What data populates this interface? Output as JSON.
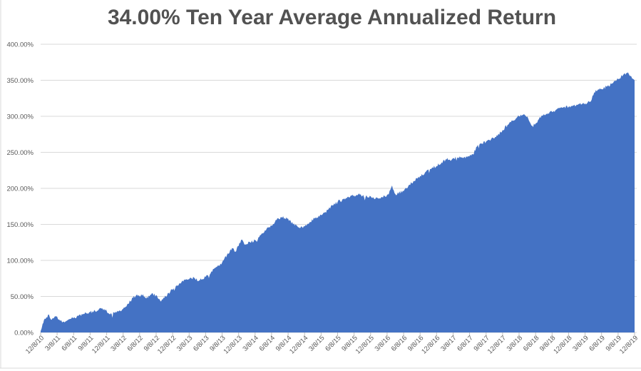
{
  "chart_data": {
    "type": "area",
    "title": "34.00% Ten Year Average Annualized Return",
    "xlabel": "",
    "ylabel": "",
    "ylim": [
      0,
      400
    ],
    "grid": true,
    "legend": false,
    "y_tick_values": [
      0,
      50,
      100,
      150,
      200,
      250,
      300,
      350,
      400
    ],
    "y_tick_labels": [
      "0.00%",
      "50.00%",
      "100.00%",
      "150.00%",
      "200.00%",
      "250.00%",
      "300.00%",
      "350.00%",
      "400.00%"
    ],
    "x_tick_labels": [
      "12/8/10",
      "3/8/11",
      "6/8/11",
      "9/8/11",
      "12/8/11",
      "3/8/12",
      "6/8/12",
      "9/8/12",
      "12/8/12",
      "3/8/13",
      "6/8/13",
      "9/8/13",
      "12/8/13",
      "3/8/14",
      "6/8/14",
      "9/8/14",
      "12/8/14",
      "3/8/15",
      "6/8/15",
      "9/8/15",
      "12/8/15",
      "3/8/16",
      "6/8/16",
      "9/8/16",
      "12/8/16",
      "3/8/17",
      "6/8/17",
      "9/8/17",
      "12/8/17",
      "3/8/18",
      "6/8/18",
      "9/8/18",
      "12/8/18",
      "3/8/19",
      "6/8/19",
      "9/8/19",
      "12/8/19"
    ],
    "series": [
      {
        "unit": "percent_cumulative_return",
        "x_unit": "quarter_index_from_12/8/10",
        "points": [
          [
            0,
            2
          ],
          [
            0.12,
            12
          ],
          [
            0.2,
            17
          ],
          [
            0.35,
            21
          ],
          [
            0.5,
            25
          ],
          [
            0.62,
            18
          ],
          [
            0.8,
            20
          ],
          [
            1,
            22
          ],
          [
            1.2,
            16
          ],
          [
            1.45,
            14
          ],
          [
            1.7,
            18
          ],
          [
            2,
            20
          ],
          [
            2.3,
            23
          ],
          [
            2.6,
            26
          ],
          [
            3,
            28
          ],
          [
            3.3,
            30
          ],
          [
            3.55,
            33
          ],
          [
            3.8,
            31
          ],
          [
            4,
            30
          ],
          [
            4.2,
            25
          ],
          [
            4.5,
            27
          ],
          [
            4.75,
            30
          ],
          [
            5,
            33
          ],
          [
            5.3,
            40
          ],
          [
            5.6,
            48
          ],
          [
            5.8,
            52
          ],
          [
            6,
            50
          ],
          [
            6.2,
            53
          ],
          [
            6.4,
            47
          ],
          [
            6.6,
            50
          ],
          [
            6.8,
            54
          ],
          [
            7,
            52
          ],
          [
            7.25,
            44
          ],
          [
            7.5,
            48
          ],
          [
            7.75,
            55
          ],
          [
            8,
            59
          ],
          [
            8.3,
            65
          ],
          [
            8.6,
            72
          ],
          [
            9,
            74
          ],
          [
            9.3,
            76
          ],
          [
            9.6,
            72
          ],
          [
            9.8,
            74
          ],
          [
            10,
            77
          ],
          [
            10.3,
            82
          ],
          [
            10.6,
            90
          ],
          [
            11,
            97
          ],
          [
            11.3,
            108
          ],
          [
            11.6,
            117
          ],
          [
            11.8,
            112
          ],
          [
            12,
            120
          ],
          [
            12.2,
            129
          ],
          [
            12.35,
            122
          ],
          [
            12.7,
            125
          ],
          [
            13,
            128
          ],
          [
            13.3,
            135
          ],
          [
            13.6,
            142
          ],
          [
            14,
            148
          ],
          [
            14.3,
            156
          ],
          [
            14.6,
            160
          ],
          [
            15,
            158
          ],
          [
            15.3,
            150
          ],
          [
            15.6,
            146
          ],
          [
            16,
            147
          ],
          [
            16.3,
            153
          ],
          [
            16.6,
            158
          ],
          [
            17,
            163
          ],
          [
            17.4,
            170
          ],
          [
            17.7,
            176
          ],
          [
            18,
            181
          ],
          [
            18.3,
            185
          ],
          [
            18.6,
            188
          ],
          [
            19,
            190
          ],
          [
            19.3,
            193
          ],
          [
            19.6,
            188
          ],
          [
            20,
            189
          ],
          [
            20.3,
            186
          ],
          [
            20.7,
            188
          ],
          [
            21,
            191
          ],
          [
            21.3,
            204
          ],
          [
            21.5,
            192
          ],
          [
            22,
            196
          ],
          [
            22.3,
            204
          ],
          [
            22.6,
            210
          ],
          [
            23,
            217
          ],
          [
            23.3,
            222
          ],
          [
            23.6,
            227
          ],
          [
            24,
            231
          ],
          [
            24.3,
            236
          ],
          [
            24.6,
            240
          ],
          [
            25,
            242
          ],
          [
            25.3,
            243
          ],
          [
            25.6,
            242
          ],
          [
            26,
            245
          ],
          [
            26.2,
            247
          ],
          [
            26.45,
            258
          ],
          [
            26.7,
            262
          ],
          [
            27,
            265
          ],
          [
            27.3,
            268
          ],
          [
            27.6,
            271
          ],
          [
            28,
            281
          ],
          [
            28.3,
            288
          ],
          [
            28.6,
            294
          ],
          [
            29,
            300
          ],
          [
            29.3,
            303
          ],
          [
            29.55,
            297
          ],
          [
            29.8,
            287
          ],
          [
            30,
            290
          ],
          [
            30.2,
            296
          ],
          [
            30.5,
            303
          ],
          [
            31,
            306
          ],
          [
            31.3,
            310
          ],
          [
            31.6,
            312
          ],
          [
            32,
            313
          ],
          [
            32.3,
            315
          ],
          [
            32.6,
            317
          ],
          [
            33,
            318
          ],
          [
            33.3,
            320
          ],
          [
            33.55,
            333
          ],
          [
            33.75,
            336
          ],
          [
            34,
            338
          ],
          [
            34.3,
            341
          ],
          [
            34.6,
            345
          ],
          [
            35,
            352
          ],
          [
            35.3,
            357
          ],
          [
            35.55,
            360
          ],
          [
            35.75,
            356
          ],
          [
            35.9,
            352
          ],
          [
            36,
            350
          ]
        ]
      }
    ],
    "colors": {
      "area": "#4472C4",
      "gridline": "#D9D9D9",
      "tick_mark": "#BFBFBF",
      "axis_label": "#595959",
      "title": "#525252",
      "chart_border": "#D9D9D9"
    },
    "render_hints": {
      "noise_amplitude": 2.1,
      "noise_seed": 9,
      "x_step": 0.05,
      "legend_position": "none"
    }
  }
}
